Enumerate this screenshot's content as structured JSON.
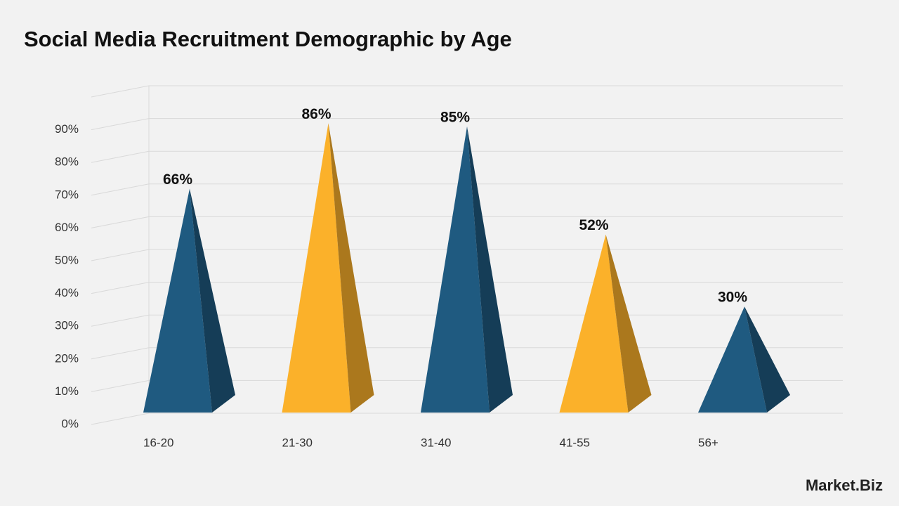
{
  "chart_data": {
    "type": "pyramid-bar",
    "title": "Social Media Recruitment Demographic by Age",
    "categories": [
      "16-20",
      "21-30",
      "31-40",
      "41-55",
      "56+"
    ],
    "values": [
      66,
      86,
      85,
      52,
      30
    ],
    "value_labels": [
      "66%",
      "86%",
      "85%",
      "52%",
      "30%"
    ],
    "colors": [
      "#1f5a80",
      "#fbb12a",
      "#1f5a80",
      "#fbb12a",
      "#1f5a80"
    ],
    "ylim": [
      0,
      100
    ],
    "yticks": [
      {
        "value": 0,
        "label": "0%"
      },
      {
        "value": 10,
        "label": "10%"
      },
      {
        "value": 20,
        "label": "20%"
      },
      {
        "value": 30,
        "label": "30%"
      },
      {
        "value": 40,
        "label": "40%"
      },
      {
        "value": 50,
        "label": "50%"
      },
      {
        "value": 60,
        "label": "60%"
      },
      {
        "value": 70,
        "label": "70%"
      },
      {
        "value": 80,
        "label": "80%"
      },
      {
        "value": 90,
        "label": "90%"
      }
    ],
    "grid": true,
    "watermark": "Market.Biz"
  }
}
